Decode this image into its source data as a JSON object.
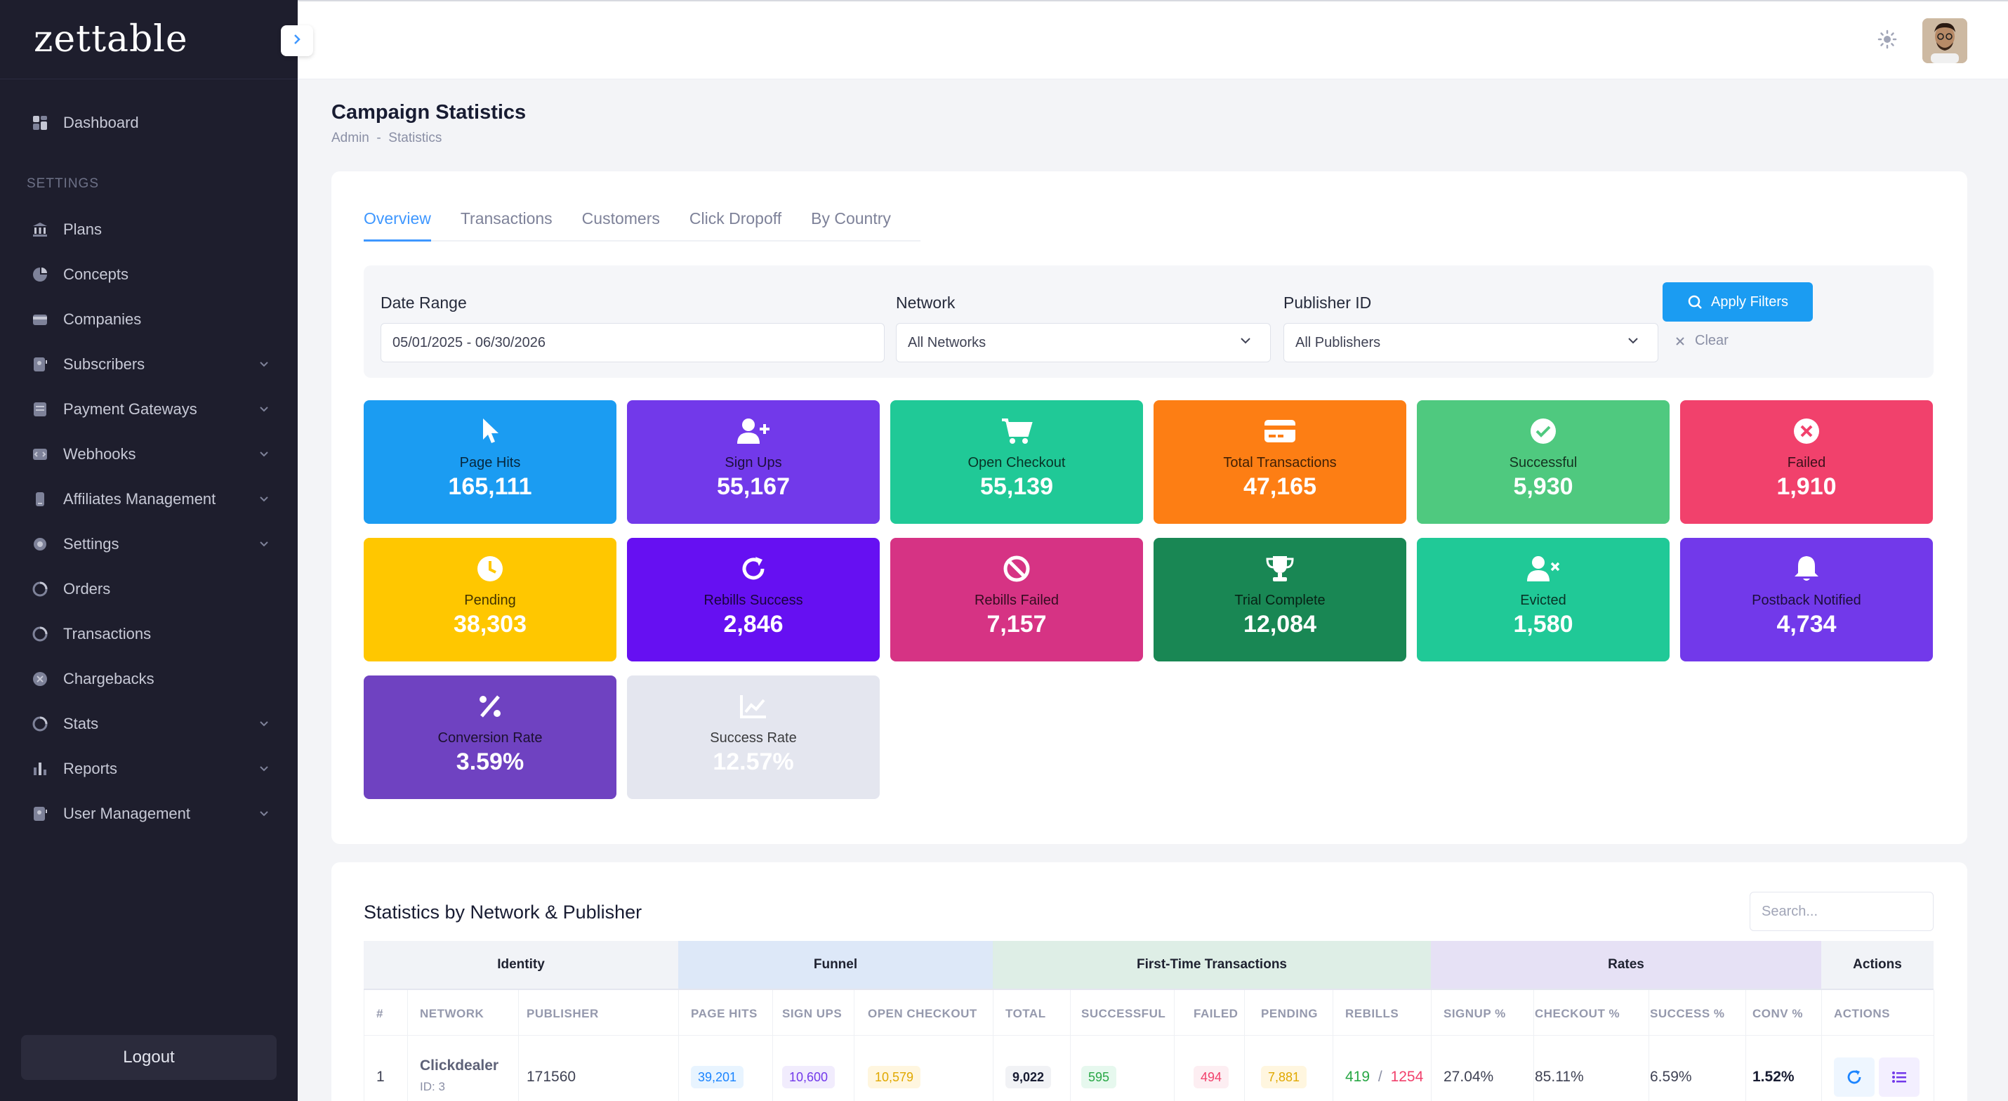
{
  "brand": "zettable",
  "sidebar": {
    "items_top": [
      {
        "label": "Dashboard",
        "icon": "dashboard-icon"
      }
    ],
    "section_label": "SETTINGS",
    "items": [
      {
        "label": "Plans",
        "icon": "bank-icon",
        "expandable": false
      },
      {
        "label": "Concepts",
        "icon": "pie-icon",
        "expandable": false
      },
      {
        "label": "Companies",
        "icon": "wallet-icon",
        "expandable": false
      },
      {
        "label": "Subscribers",
        "icon": "user-file-icon",
        "expandable": true
      },
      {
        "label": "Payment Gateways",
        "icon": "gateway-icon",
        "expandable": true
      },
      {
        "label": "Webhooks",
        "icon": "webhook-icon",
        "expandable": true
      },
      {
        "label": "Affiliates Management",
        "icon": "affiliate-icon",
        "expandable": true
      },
      {
        "label": "Settings",
        "icon": "gear-icon",
        "expandable": true
      },
      {
        "label": "Orders",
        "icon": "orders-icon",
        "expandable": false
      },
      {
        "label": "Transactions",
        "icon": "transactions-icon",
        "expandable": false
      },
      {
        "label": "Chargebacks",
        "icon": "chargeback-icon",
        "expandable": false
      },
      {
        "label": "Stats",
        "icon": "stats-icon",
        "expandable": true
      },
      {
        "label": "Reports",
        "icon": "reports-icon",
        "expandable": true
      },
      {
        "label": "User Management",
        "icon": "user-management-icon",
        "expandable": true
      }
    ],
    "logout_label": "Logout"
  },
  "header": {
    "title": "Campaign Statistics",
    "breadcrumb": "Admin  -  Statistics"
  },
  "tabs": [
    "Overview",
    "Transactions",
    "Customers",
    "Click Dropoff",
    "By Country"
  ],
  "filters": {
    "date_label": "Date Range",
    "date_value": "05/01/2025 - 06/30/2026",
    "network_label": "Network",
    "network_value": "All Networks",
    "publisher_label": "Publisher ID",
    "publisher_value": "All Publishers",
    "apply_label": "Apply Filters",
    "clear_label": "Clear"
  },
  "stats": [
    {
      "label": "Page Hits",
      "value": "165,111",
      "color": "#1b9cf2",
      "icon": "cursor-icon"
    },
    {
      "label": "Sign Ups",
      "value": "55,167",
      "color": "#7239ea",
      "icon": "user-plus-icon"
    },
    {
      "label": "Open Checkout",
      "value": "55,139",
      "color": "#20c997",
      "icon": "cart-icon"
    },
    {
      "label": "Total Transactions",
      "value": "47,165",
      "color": "#fd7e14",
      "icon": "credit-card-icon"
    },
    {
      "label": "Successful",
      "value": "5,930",
      "color": "#4fc97f",
      "icon": "check-circle-icon"
    },
    {
      "label": "Failed",
      "value": "1,910",
      "color": "#f1416c",
      "icon": "x-circle-icon"
    },
    {
      "label": "Pending",
      "value": "38,303",
      "color": "#ffc700",
      "icon": "clock-icon"
    },
    {
      "label": "Rebills Success",
      "value": "2,846",
      "color": "#6610f2",
      "icon": "refresh-icon"
    },
    {
      "label": "Rebills Failed",
      "value": "7,157",
      "color": "#d63384",
      "icon": "ban-icon"
    },
    {
      "label": "Trial Complete",
      "value": "12,084",
      "color": "#198754",
      "icon": "trophy-icon"
    },
    {
      "label": "Evicted",
      "value": "1,580",
      "color": "#20c997",
      "icon": "user-x-icon"
    },
    {
      "label": "Postback Notified",
      "value": "4,734",
      "color": "#7239ea",
      "icon": "bell-icon"
    },
    {
      "label": "Conversion Rate",
      "value": "3.59%",
      "color": "#6f42c1",
      "icon": "percent-icon"
    },
    {
      "label": "Success Rate",
      "value": "12.57%",
      "color": "#e4e6ef",
      "icon": "chart-line-icon"
    }
  ],
  "table": {
    "title": "Statistics by Network & Publisher",
    "search_placeholder": "Search...",
    "groups": [
      {
        "label": "Identity",
        "color": "#f1f3f7"
      },
      {
        "label": "Funnel",
        "color": "#dde8f8"
      },
      {
        "label": "First-Time Transactions",
        "color": "#deeee6"
      },
      {
        "label": "Rates",
        "color": "#e6e1f5"
      },
      {
        "label": "Actions",
        "color": "#f1f3f7"
      }
    ],
    "columns": [
      "#",
      "NETWORK",
      "PUBLISHER",
      "PAGE HITS",
      "SIGN UPS",
      "OPEN CHECKOUT",
      "TOTAL",
      "SUCCESSFUL",
      "FAILED",
      "PENDING",
      "REBILLS",
      "SIGNUP %",
      "CHECKOUT %",
      "SUCCESS %",
      "CONV %",
      "ACTIONS"
    ],
    "rows": [
      {
        "index": "1",
        "network": "Clickdealer",
        "network_id": "ID: 3",
        "publisher": "171560",
        "page_hits": "39,201",
        "sign_ups": "10,600",
        "open_checkout": "10,579",
        "total": "9,022",
        "successful": "595",
        "failed": "494",
        "pending": "7,881",
        "rebills_success": "419",
        "rebills_sep": "/",
        "rebills_failed": "1254",
        "signup_pct": "27.04%",
        "checkout_pct": "85.11%",
        "success_pct": "6.59%",
        "conv_pct": "1.52%"
      }
    ]
  }
}
